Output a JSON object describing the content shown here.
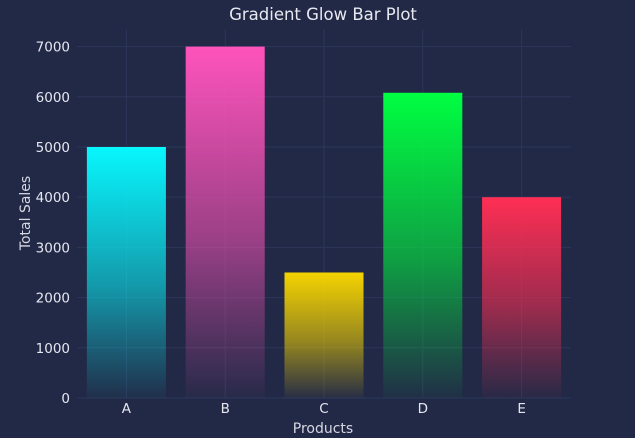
{
  "chart_data": {
    "type": "bar",
    "title": "Gradient Glow Bar Plot",
    "xlabel": "Products",
    "ylabel": "Total Sales",
    "categories": [
      "A",
      "B",
      "C",
      "D",
      "E"
    ],
    "values": [
      5000,
      7000,
      2500,
      6080,
      4000
    ],
    "ylim": [
      0,
      7350
    ],
    "yticks": [
      0,
      1000,
      2000,
      3000,
      4000,
      5000,
      6000,
      7000
    ],
    "grid": true,
    "colors": [
      "#08F7FE",
      "#FE53BB",
      "#F5D300",
      "#00ff41",
      "#FF2E54"
    ],
    "background": "#212946"
  }
}
